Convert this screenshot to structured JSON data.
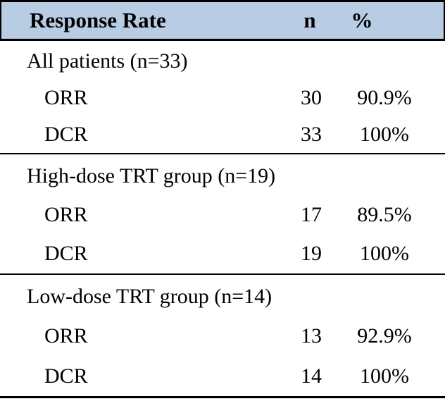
{
  "table": {
    "header": {
      "response_rate": "Response Rate",
      "n": "n",
      "pct": "%"
    },
    "sections": [
      {
        "group": "All patients (n=33)",
        "rows": [
          {
            "label": "ORR",
            "n": "30",
            "pct": "90.9%"
          },
          {
            "label": "DCR",
            "n": "33",
            "pct": "100%"
          }
        ]
      },
      {
        "group": "High-dose TRT group (n=19)",
        "rows": [
          {
            "label": "ORR",
            "n": "17",
            "pct": "89.5%"
          },
          {
            "label": "DCR",
            "n": "19",
            "pct": "100%"
          }
        ]
      },
      {
        "group": "Low-dose TRT group (n=14)",
        "rows": [
          {
            "label": "ORR",
            "n": "13",
            "pct": "92.9%"
          },
          {
            "label": "DCR",
            "n": "14",
            "pct": "100%"
          }
        ]
      }
    ]
  },
  "chart_data": {
    "type": "table",
    "title": "Response Rate",
    "columns": [
      "Response Rate",
      "n",
      "%"
    ],
    "rows": [
      [
        "All patients (n=33)",
        "",
        ""
      ],
      [
        "ORR",
        "30",
        "90.9%"
      ],
      [
        "DCR",
        "33",
        "100%"
      ],
      [
        "High-dose TRT group (n=19)",
        "",
        ""
      ],
      [
        "ORR",
        "17",
        "89.5%"
      ],
      [
        "DCR",
        "19",
        "100%"
      ],
      [
        "Low-dose TRT group (n=14)",
        "",
        ""
      ],
      [
        "ORR",
        "13",
        "92.9%"
      ],
      [
        "DCR",
        "14",
        "100%"
      ]
    ]
  },
  "colors": {
    "header_bg": "#b8cce4",
    "border": "#000000"
  }
}
